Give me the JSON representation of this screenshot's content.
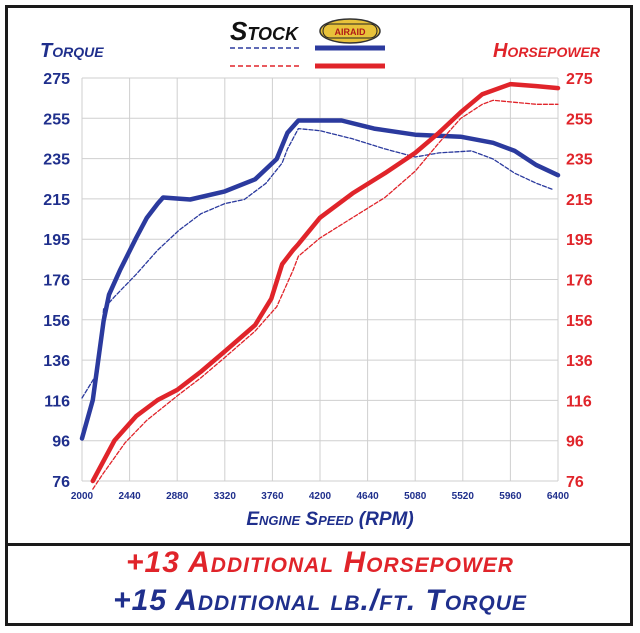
{
  "chart_data": {
    "type": "line",
    "title": "",
    "xlabel": "Engine Speed (RPM)",
    "ylabel_left": "Torque",
    "ylabel_right": "Horsepower",
    "x_ticks": [
      "2000",
      "2440",
      "2880",
      "3320",
      "3760",
      "4200",
      "4640",
      "5080",
      "5520",
      "5960",
      "6400"
    ],
    "y_ticks": [
      "76",
      "96",
      "116",
      "136",
      "156",
      "176",
      "195",
      "215",
      "235",
      "255",
      "275"
    ],
    "xlim": [
      2000,
      6400
    ],
    "ylim": [
      76,
      275
    ],
    "grid": true,
    "legend": {
      "stock_label": "Stock",
      "airaid_label": "AIRAID",
      "placement": "top-center"
    },
    "series": [
      {
        "name": "Stock",
        "metric": "Torque",
        "color": "#2b3a9e",
        "style": "dashed",
        "points": [
          [
            2000,
            117
          ],
          [
            2150,
            130
          ],
          [
            2200,
            161
          ],
          [
            2300,
            167
          ],
          [
            2500,
            178
          ],
          [
            2700,
            190
          ],
          [
            2900,
            200
          ],
          [
            3100,
            208
          ],
          [
            3320,
            213
          ],
          [
            3500,
            215
          ],
          [
            3700,
            223
          ],
          [
            3850,
            233
          ],
          [
            3900,
            240
          ],
          [
            4000,
            250
          ],
          [
            4200,
            249
          ],
          [
            4500,
            245
          ],
          [
            4800,
            240
          ],
          [
            5080,
            236
          ],
          [
            5300,
            238
          ],
          [
            5600,
            239
          ],
          [
            5800,
            235
          ],
          [
            6000,
            228
          ],
          [
            6200,
            223
          ],
          [
            6350,
            220
          ]
        ]
      },
      {
        "name": "AIRAID",
        "metric": "Torque",
        "color": "#2b3a9e",
        "style": "solid",
        "points": [
          [
            2000,
            97
          ],
          [
            2100,
            116
          ],
          [
            2200,
            155
          ],
          [
            2250,
            168
          ],
          [
            2350,
            180
          ],
          [
            2500,
            196
          ],
          [
            2600,
            206
          ],
          [
            2700,
            213
          ],
          [
            2750,
            216
          ],
          [
            3000,
            215
          ],
          [
            3320,
            219
          ],
          [
            3600,
            225
          ],
          [
            3800,
            235
          ],
          [
            3900,
            248
          ],
          [
            4000,
            254
          ],
          [
            4400,
            254
          ],
          [
            4700,
            250
          ],
          [
            5080,
            247
          ],
          [
            5500,
            246
          ],
          [
            5800,
            243
          ],
          [
            6000,
            239
          ],
          [
            6200,
            232
          ],
          [
            6400,
            227
          ]
        ]
      },
      {
        "name": "Stock",
        "metric": "Horsepower",
        "color": "#e0242a",
        "style": "dashed",
        "points": [
          [
            2100,
            72
          ],
          [
            2200,
            80
          ],
          [
            2400,
            95
          ],
          [
            2600,
            106
          ],
          [
            2880,
            118
          ],
          [
            3100,
            127
          ],
          [
            3320,
            137
          ],
          [
            3600,
            150
          ],
          [
            3800,
            162
          ],
          [
            3950,
            180
          ],
          [
            4000,
            187
          ],
          [
            4200,
            196
          ],
          [
            4500,
            206
          ],
          [
            4800,
            216
          ],
          [
            5080,
            229
          ],
          [
            5300,
            243
          ],
          [
            5500,
            255
          ],
          [
            5700,
            262
          ],
          [
            5800,
            264
          ],
          [
            6000,
            263
          ],
          [
            6200,
            262
          ],
          [
            6400,
            262
          ]
        ]
      },
      {
        "name": "AIRAID",
        "metric": "Horsepower",
        "color": "#e0242a",
        "style": "solid",
        "points": [
          [
            2100,
            76
          ],
          [
            2300,
            96
          ],
          [
            2500,
            108
          ],
          [
            2700,
            116
          ],
          [
            2880,
            121
          ],
          [
            3100,
            130
          ],
          [
            3320,
            140
          ],
          [
            3600,
            153
          ],
          [
            3750,
            166
          ],
          [
            3850,
            183
          ],
          [
            3950,
            190
          ],
          [
            4000,
            193
          ],
          [
            4200,
            206
          ],
          [
            4500,
            218
          ],
          [
            4800,
            228
          ],
          [
            5080,
            238
          ],
          [
            5300,
            248
          ],
          [
            5500,
            258
          ],
          [
            5700,
            267
          ],
          [
            5960,
            272
          ],
          [
            6200,
            271
          ],
          [
            6400,
            270
          ]
        ]
      }
    ]
  },
  "footer": {
    "line1": "+13 Additional Horsepower",
    "line2": "+15 Additional lb./ft. Torque"
  }
}
